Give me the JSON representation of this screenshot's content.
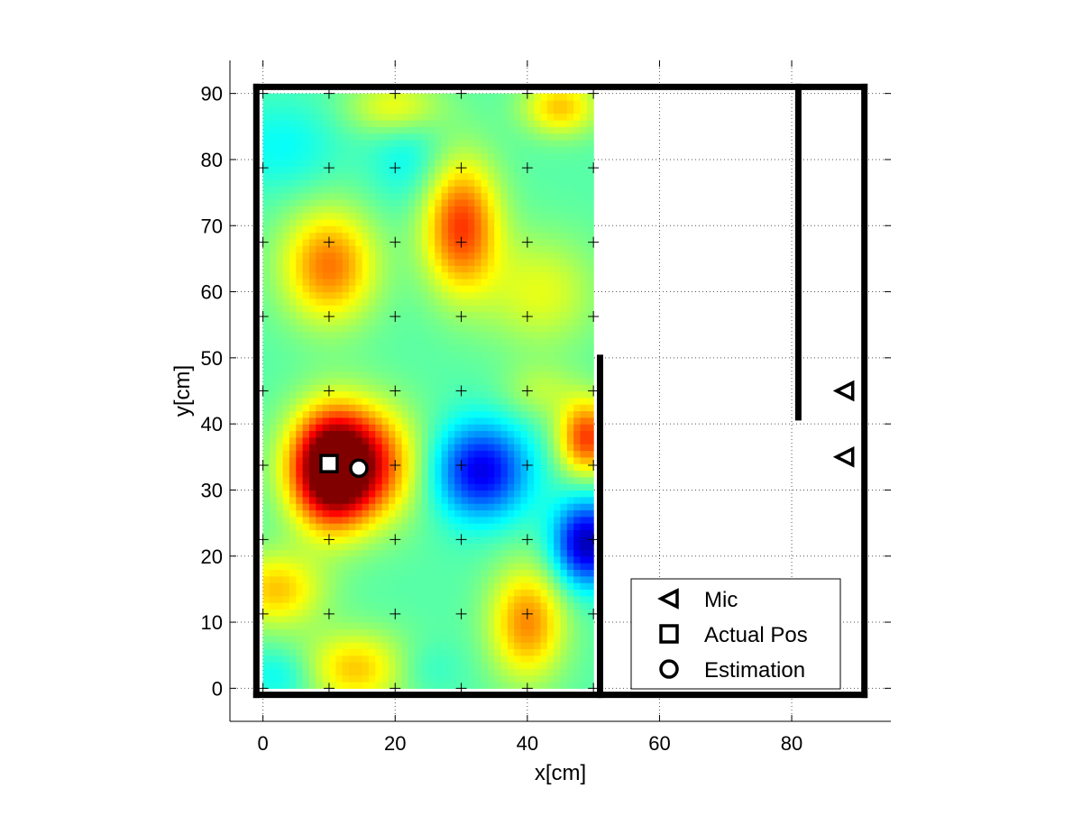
{
  "chart_data": {
    "type": "heatmap",
    "title": "",
    "xlabel": "x[cm]",
    "ylabel": "y[cm]",
    "xlim": [
      -5,
      95
    ],
    "ylim": [
      -5,
      95
    ],
    "xticks": [
      0,
      20,
      40,
      60,
      80
    ],
    "yticks": [
      0,
      10,
      20,
      30,
      40,
      50,
      60,
      70,
      80,
      90
    ],
    "grid": true,
    "grid_style": "dotted",
    "heatmap": {
      "x_range": [
        0,
        50
      ],
      "y_range": [
        0,
        90
      ],
      "colormap": "jet",
      "baseline": 0.46,
      "blobs": [
        {
          "x": 14,
          "y": 34,
          "value": 0.92,
          "sx": 6,
          "sy": 6
        },
        {
          "x": 10,
          "y": 33,
          "value": 0.88,
          "sx": 4,
          "sy": 6
        },
        {
          "x": 33,
          "y": 33,
          "value": 0.1,
          "sx": 5,
          "sy": 5
        },
        {
          "x": 49,
          "y": 22,
          "value": 0.05,
          "sx": 3.5,
          "sy": 4.5
        },
        {
          "x": 49,
          "y": 38,
          "value": 0.82,
          "sx": 3,
          "sy": 4
        },
        {
          "x": 10,
          "y": 64,
          "value": 0.76,
          "sx": 5,
          "sy": 6
        },
        {
          "x": 30,
          "y": 70,
          "value": 0.82,
          "sx": 4,
          "sy": 7
        },
        {
          "x": 40,
          "y": 10,
          "value": 0.74,
          "sx": 4,
          "sy": 6
        },
        {
          "x": 2,
          "y": 15,
          "value": 0.68,
          "sx": 5,
          "sy": 4
        },
        {
          "x": 14,
          "y": 3,
          "value": 0.68,
          "sx": 6,
          "sy": 4
        },
        {
          "x": 3,
          "y": 2,
          "value": 0.36,
          "sx": 4,
          "sy": 3
        },
        {
          "x": 3,
          "y": 82,
          "value": 0.38,
          "sx": 6,
          "sy": 5
        },
        {
          "x": 22,
          "y": 80,
          "value": 0.38,
          "sx": 4,
          "sy": 5
        },
        {
          "x": 42,
          "y": 60,
          "value": 0.6,
          "sx": 6,
          "sy": 6
        },
        {
          "x": 45,
          "y": 88,
          "value": 0.68,
          "sx": 4,
          "sy": 3
        },
        {
          "x": 24,
          "y": 3,
          "value": 0.4,
          "sx": 4,
          "sy": 3
        },
        {
          "x": 42,
          "y": 45,
          "value": 0.55,
          "sx": 4,
          "sy": 3
        },
        {
          "x": 20,
          "y": 88,
          "value": 0.62,
          "sx": 5,
          "sy": 3
        }
      ]
    },
    "grid_markers": {
      "x": [
        0,
        10,
        20,
        30,
        40,
        50
      ],
      "y": [
        0,
        11.25,
        22.5,
        33.75,
        45,
        56.25,
        67.5,
        78.75,
        90
      ]
    },
    "walls": [
      {
        "from": [
          -1,
          -1
        ],
        "to": [
          91,
          -1
        ]
      },
      {
        "from": [
          -1,
          -1
        ],
        "to": [
          -1,
          91
        ]
      },
      {
        "from": [
          -1,
          91
        ],
        "to": [
          91,
          91
        ]
      },
      {
        "from": [
          91,
          91
        ],
        "to": [
          91,
          -1
        ]
      },
      {
        "from": [
          51,
          -1
        ],
        "to": [
          51,
          50
        ]
      },
      {
        "from": [
          81,
          91
        ],
        "to": [
          81,
          41
        ]
      }
    ],
    "series": [
      {
        "name": "Mic",
        "marker": "triangle-left",
        "points": [
          [
            88,
            45
          ],
          [
            88,
            35
          ]
        ]
      },
      {
        "name": "Actual Pos",
        "marker": "square",
        "points": [
          [
            10,
            34
          ]
        ]
      },
      {
        "name": "Estimation",
        "marker": "circle",
        "points": [
          [
            14.5,
            33.3
          ]
        ]
      }
    ],
    "legend_position": "bottom-right"
  }
}
